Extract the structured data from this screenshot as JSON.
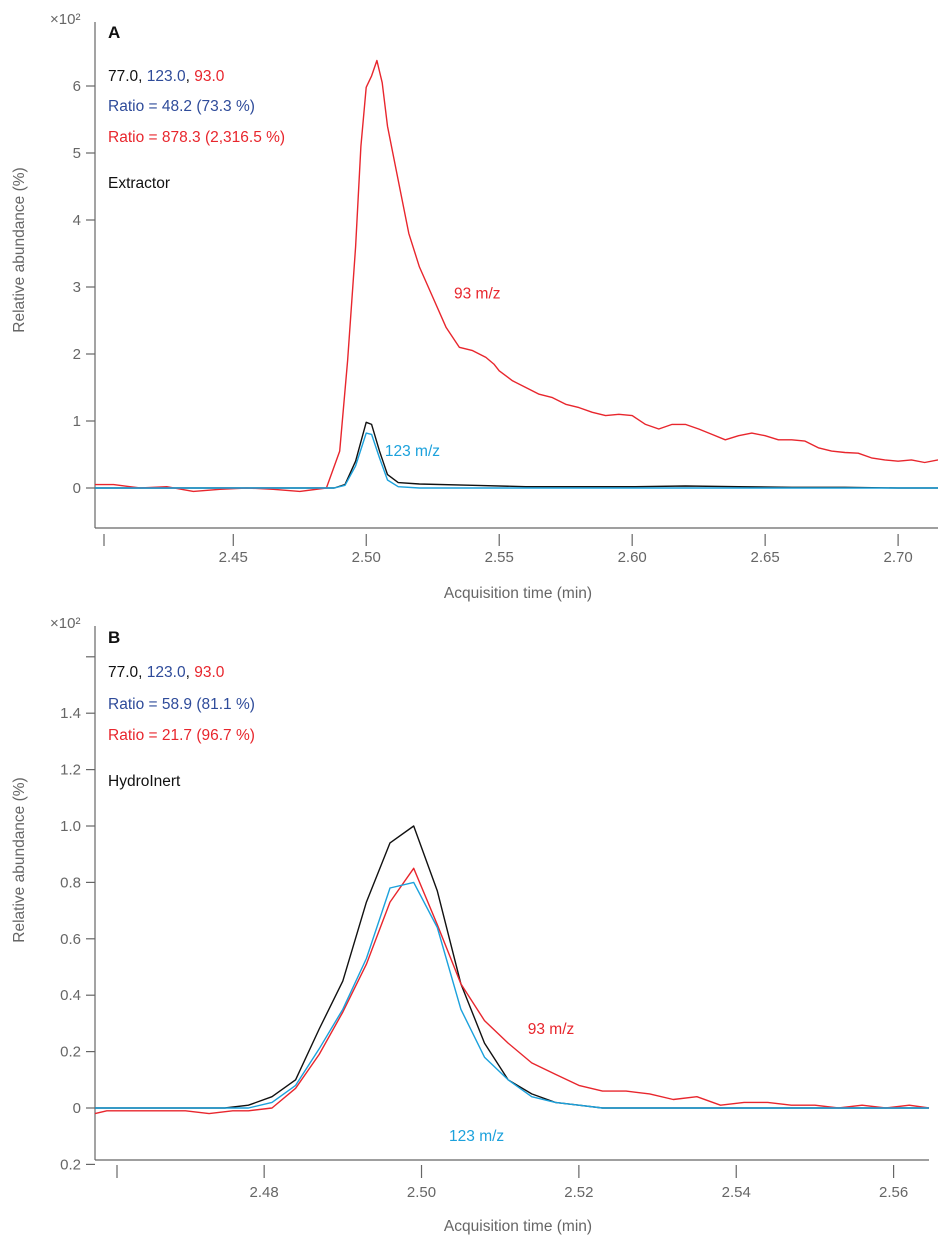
{
  "colors": {
    "black": "#111111",
    "blue": "#2e4b9a",
    "red": "#e8262d",
    "cyan": "#1ba1dc",
    "axis": "#666666"
  },
  "chart_data": [
    {
      "type": "line",
      "panel": "A",
      "multiplier_label": "×10²",
      "xlabel": "Acquisition time (min)",
      "ylabel": "Relative abundance (%)",
      "xlim": [
        2.398,
        2.715
      ],
      "ylim": [
        -0.55,
        6.85
      ],
      "xticks": [
        2.45,
        2.5,
        2.55,
        2.6,
        2.65,
        2.7
      ],
      "xtick_labels": [
        "2.45",
        "2.50",
        "2.55",
        "2.60",
        "2.65",
        "2.70"
      ],
      "yticks": [
        0,
        1,
        2,
        3,
        4,
        5,
        6
      ],
      "ytick_labels": [
        "0",
        "1",
        "2",
        "3",
        "4",
        "5",
        "6"
      ],
      "ions_line": [
        "77.0",
        "123.0",
        "93.0"
      ],
      "ratio_1": "Ratio = 48.2 (73.3 %)",
      "ratio_2": "Ratio = 878.3 (2,316.5 %)",
      "sample": "Extractor",
      "annotations": [
        {
          "text": "93 m/z",
          "x": 2.533,
          "y": 2.9,
          "color": "red"
        },
        {
          "text": "123 m/z",
          "x": 2.507,
          "y": 0.55,
          "color": "cyan"
        }
      ],
      "series": [
        {
          "color": "black",
          "x": [
            2.398,
            2.42,
            2.44,
            2.46,
            2.48,
            2.488,
            2.492,
            2.496,
            2.5,
            2.502,
            2.505,
            2.508,
            2.512,
            2.52,
            2.54,
            2.56,
            2.58,
            2.6,
            2.62,
            2.64,
            2.66,
            2.68,
            2.7,
            2.715
          ],
          "y": [
            0.0,
            0.0,
            0.0,
            0.0,
            0.0,
            0.0,
            0.05,
            0.4,
            0.98,
            0.95,
            0.55,
            0.2,
            0.08,
            0.06,
            0.04,
            0.02,
            0.02,
            0.02,
            0.03,
            0.02,
            0.01,
            0.01,
            0.0,
            0.0
          ]
        },
        {
          "color": "cyan",
          "x": [
            2.398,
            2.42,
            2.44,
            2.46,
            2.48,
            2.488,
            2.492,
            2.496,
            2.5,
            2.502,
            2.505,
            2.508,
            2.512,
            2.52,
            2.54,
            2.56,
            2.58,
            2.6,
            2.62,
            2.64,
            2.66,
            2.68,
            2.7,
            2.715
          ],
          "y": [
            0.0,
            0.0,
            0.0,
            0.0,
            0.0,
            0.0,
            0.04,
            0.33,
            0.82,
            0.8,
            0.45,
            0.12,
            0.02,
            0.0,
            0.0,
            0.0,
            0.0,
            0.0,
            0.0,
            0.0,
            0.0,
            0.0,
            0.0,
            0.0
          ]
        },
        {
          "color": "red",
          "x": [
            2.398,
            2.405,
            2.415,
            2.425,
            2.435,
            2.445,
            2.455,
            2.465,
            2.475,
            2.485,
            2.49,
            2.493,
            2.496,
            2.498,
            2.5,
            2.502,
            2.504,
            2.506,
            2.508,
            2.51,
            2.513,
            2.516,
            2.52,
            2.525,
            2.53,
            2.535,
            2.54,
            2.545,
            2.548,
            2.55,
            2.555,
            2.56,
            2.565,
            2.57,
            2.575,
            2.58,
            2.585,
            2.59,
            2.595,
            2.6,
            2.605,
            2.61,
            2.615,
            2.62,
            2.625,
            2.63,
            2.635,
            2.64,
            2.645,
            2.65,
            2.655,
            2.66,
            2.665,
            2.67,
            2.675,
            2.68,
            2.685,
            2.69,
            2.695,
            2.7,
            2.705,
            2.71,
            2.715
          ],
          "y": [
            0.05,
            0.05,
            0.0,
            0.02,
            -0.05,
            -0.02,
            0.0,
            -0.02,
            -0.05,
            0.0,
            0.55,
            1.9,
            3.6,
            5.1,
            5.98,
            6.15,
            6.38,
            6.05,
            5.4,
            5.0,
            4.4,
            3.8,
            3.3,
            2.85,
            2.4,
            2.1,
            2.05,
            1.95,
            1.85,
            1.75,
            1.6,
            1.5,
            1.4,
            1.35,
            1.25,
            1.2,
            1.13,
            1.08,
            1.1,
            1.08,
            0.95,
            0.88,
            0.95,
            0.95,
            0.88,
            0.8,
            0.72,
            0.78,
            0.82,
            0.78,
            0.72,
            0.72,
            0.7,
            0.6,
            0.55,
            0.53,
            0.52,
            0.45,
            0.42,
            0.4,
            0.42,
            0.38,
            0.42
          ]
        }
      ]
    },
    {
      "type": "line",
      "panel": "B",
      "multiplier_label": "×10²",
      "xlabel": "Acquisition time (min)",
      "ylabel": "Relative abundance (%)",
      "xlim": [
        2.4585,
        2.5645
      ],
      "ylim": [
        -0.22,
        1.69
      ],
      "xticks": [
        2.48,
        2.5,
        2.52,
        2.54,
        2.56
      ],
      "xtick_labels": [
        "2.48",
        "2.50",
        "2.52",
        "2.54",
        "2.56"
      ],
      "yticks": [
        -0.2,
        0,
        0.2,
        0.4,
        0.6,
        0.8,
        1.0,
        1.2,
        1.4
      ],
      "ytick_labels": [
        "0.2",
        "0",
        "0.2",
        "0.4",
        "0.6",
        "0.8",
        "1.0",
        "1.2",
        "1.4"
      ],
      "extra_ticks": [
        1.6
      ],
      "ions_line": [
        "77.0",
        "123.0",
        "93.0"
      ],
      "ratio_1": "Ratio = 58.9 (81.1 %)",
      "ratio_2": "Ratio = 21.7 (96.7 %)",
      "sample": "HydroInert",
      "annotations": [
        {
          "text": "93 m/z",
          "x": 2.5135,
          "y": 0.28,
          "color": "red"
        },
        {
          "text": "123 m/z",
          "x": 2.5035,
          "y": -0.1,
          "color": "cyan"
        }
      ],
      "series": [
        {
          "color": "black",
          "x": [
            2.4585,
            2.47,
            2.475,
            2.478,
            2.481,
            2.484,
            2.487,
            2.49,
            2.493,
            2.496,
            2.499,
            2.502,
            2.505,
            2.508,
            2.511,
            2.514,
            2.517,
            2.52,
            2.523,
            2.53,
            2.54,
            2.55,
            2.56,
            2.5645
          ],
          "y": [
            0.0,
            0.0,
            0.0,
            0.01,
            0.04,
            0.1,
            0.28,
            0.45,
            0.73,
            0.94,
            1.0,
            0.77,
            0.44,
            0.23,
            0.1,
            0.05,
            0.02,
            0.01,
            0.0,
            0.0,
            0.0,
            0.0,
            0.0,
            0.0
          ]
        },
        {
          "color": "cyan",
          "x": [
            2.4585,
            2.47,
            2.475,
            2.478,
            2.481,
            2.484,
            2.487,
            2.49,
            2.493,
            2.496,
            2.499,
            2.502,
            2.505,
            2.508,
            2.511,
            2.514,
            2.517,
            2.52,
            2.523,
            2.53,
            2.54,
            2.55,
            2.56,
            2.5645
          ],
          "y": [
            0.0,
            0.0,
            0.0,
            0.0,
            0.02,
            0.08,
            0.21,
            0.35,
            0.53,
            0.78,
            0.8,
            0.64,
            0.35,
            0.18,
            0.1,
            0.04,
            0.02,
            0.01,
            0.0,
            0.0,
            0.0,
            0.0,
            0.0,
            0.0
          ]
        },
        {
          "color": "red",
          "x": [
            2.4585,
            2.46,
            2.465,
            2.47,
            2.473,
            2.476,
            2.478,
            2.481,
            2.484,
            2.487,
            2.49,
            2.493,
            2.496,
            2.499,
            2.502,
            2.505,
            2.508,
            2.511,
            2.514,
            2.517,
            2.52,
            2.523,
            2.526,
            2.529,
            2.532,
            2.535,
            2.538,
            2.541,
            2.544,
            2.547,
            2.55,
            2.553,
            2.556,
            2.559,
            2.562,
            2.5645
          ],
          "y": [
            -0.02,
            -0.01,
            -0.01,
            -0.01,
            -0.02,
            -0.01,
            -0.01,
            0.0,
            0.07,
            0.19,
            0.34,
            0.51,
            0.73,
            0.85,
            0.65,
            0.44,
            0.31,
            0.23,
            0.16,
            0.12,
            0.08,
            0.06,
            0.06,
            0.05,
            0.03,
            0.04,
            0.01,
            0.02,
            0.02,
            0.01,
            0.01,
            0.0,
            0.01,
            0.0,
            0.01,
            0.0
          ]
        }
      ]
    }
  ]
}
